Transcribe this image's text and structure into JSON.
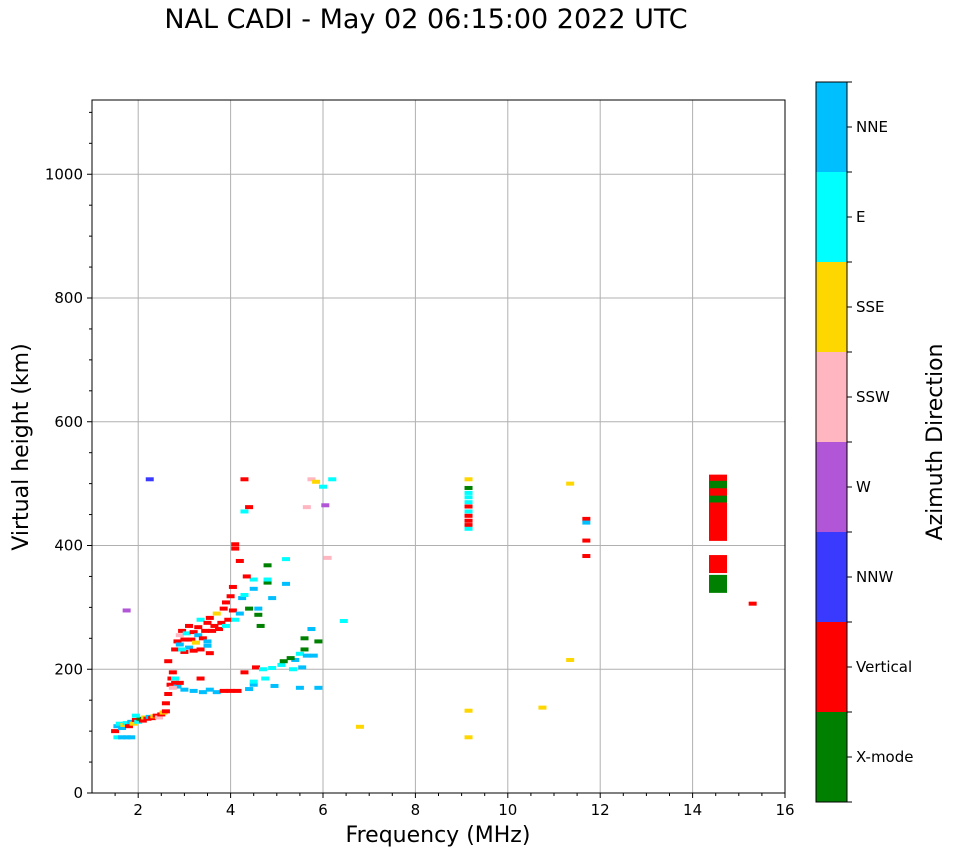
{
  "chart_data": {
    "type": "scatter",
    "title": "NAL CADI - May 02 06:15:00 2022 UTC",
    "xlabel": "Frequency (MHz)",
    "ylabel": "Virtual height (km)",
    "xlim": [
      1,
      16
    ],
    "ylim": [
      0,
      1120
    ],
    "xticks": [
      2,
      4,
      6,
      8,
      10,
      12,
      14,
      16
    ],
    "yticks": [
      0,
      200,
      400,
      600,
      800,
      1000
    ],
    "grid": true,
    "colorbar": {
      "label": "Azimuth Direction",
      "categories": [
        {
          "name": "X-mode",
          "color": "#008000"
        },
        {
          "name": "Vertical",
          "color": "#ff0000"
        },
        {
          "name": "NNW",
          "color": "#3a3aff"
        },
        {
          "name": "W",
          "color": "#b256d8"
        },
        {
          "name": "SSW",
          "color": "#ffb6c1"
        },
        {
          "name": "SSE",
          "color": "#ffd700"
        },
        {
          "name": "E",
          "color": "#00ffff"
        },
        {
          "name": "NNE",
          "color": "#00bfff"
        }
      ]
    },
    "points": [
      {
        "f": 1.55,
        "h": 90,
        "c": "E"
      },
      {
        "f": 1.65,
        "h": 90,
        "c": "NNE"
      },
      {
        "f": 1.75,
        "h": 90,
        "c": "NNE"
      },
      {
        "f": 1.85,
        "h": 90,
        "c": "NNE"
      },
      {
        "f": 1.5,
        "h": 100,
        "c": "Vertical"
      },
      {
        "f": 1.55,
        "h": 108,
        "c": "NNE"
      },
      {
        "f": 1.6,
        "h": 112,
        "c": "E"
      },
      {
        "f": 1.65,
        "h": 105,
        "c": "NNE"
      },
      {
        "f": 1.7,
        "h": 110,
        "c": "SSE"
      },
      {
        "f": 1.75,
        "h": 113,
        "c": "E"
      },
      {
        "f": 1.8,
        "h": 108,
        "c": "Vertical"
      },
      {
        "f": 1.85,
        "h": 115,
        "c": "NNE"
      },
      {
        "f": 1.9,
        "h": 112,
        "c": "SSE"
      },
      {
        "f": 1.95,
        "h": 118,
        "c": "Vertical"
      },
      {
        "f": 2.0,
        "h": 115,
        "c": "E"
      },
      {
        "f": 2.05,
        "h": 120,
        "c": "X-mode"
      },
      {
        "f": 2.1,
        "h": 117,
        "c": "Vertical"
      },
      {
        "f": 2.15,
        "h": 122,
        "c": "SSE"
      },
      {
        "f": 2.2,
        "h": 120,
        "c": "Vertical"
      },
      {
        "f": 2.25,
        "h": 123,
        "c": "NNE"
      },
      {
        "f": 2.3,
        "h": 121,
        "c": "Vertical"
      },
      {
        "f": 2.35,
        "h": 124,
        "c": "SSE"
      },
      {
        "f": 2.4,
        "h": 125,
        "c": "Vertical"
      },
      {
        "f": 2.45,
        "h": 122,
        "c": "SSW"
      },
      {
        "f": 2.5,
        "h": 127,
        "c": "Vertical"
      },
      {
        "f": 2.55,
        "h": 130,
        "c": "SSE"
      },
      {
        "f": 2.6,
        "h": 132,
        "c": "Vertical"
      },
      {
        "f": 1.95,
        "h": 125,
        "c": "E"
      },
      {
        "f": 2.6,
        "h": 145,
        "c": "Vertical"
      },
      {
        "f": 2.65,
        "h": 160,
        "c": "Vertical"
      },
      {
        "f": 2.7,
        "h": 175,
        "c": "Vertical"
      },
      {
        "f": 2.72,
        "h": 185,
        "c": "Vertical"
      },
      {
        "f": 2.75,
        "h": 195,
        "c": "Vertical"
      },
      {
        "f": 2.8,
        "h": 178,
        "c": "Vertical"
      },
      {
        "f": 2.85,
        "h": 172,
        "c": "NNE"
      },
      {
        "f": 2.9,
        "h": 178,
        "c": "Vertical"
      },
      {
        "f": 2.75,
        "h": 170,
        "c": "SSW"
      },
      {
        "f": 2.8,
        "h": 185,
        "c": "E"
      },
      {
        "f": 2.65,
        "h": 213,
        "c": "Vertical"
      },
      {
        "f": 3.0,
        "h": 167,
        "c": "NNE"
      },
      {
        "f": 3.2,
        "h": 165,
        "c": "NNE"
      },
      {
        "f": 3.4,
        "h": 163,
        "c": "NNE"
      },
      {
        "f": 3.55,
        "h": 167,
        "c": "NNE"
      },
      {
        "f": 3.7,
        "h": 163,
        "c": "NNE"
      },
      {
        "f": 3.85,
        "h": 165,
        "c": "Vertical"
      },
      {
        "f": 4.0,
        "h": 165,
        "c": "Vertical"
      },
      {
        "f": 4.15,
        "h": 165,
        "c": "Vertical"
      },
      {
        "f": 4.4,
        "h": 168,
        "c": "NNE"
      },
      {
        "f": 4.5,
        "h": 175,
        "c": "NNE"
      },
      {
        "f": 4.5,
        "h": 180,
        "c": "E"
      },
      {
        "f": 4.75,
        "h": 185,
        "c": "E"
      },
      {
        "f": 4.95,
        "h": 173,
        "c": "NNE"
      },
      {
        "f": 4.3,
        "h": 195,
        "c": "Vertical"
      },
      {
        "f": 3.35,
        "h": 185,
        "c": "Vertical"
      },
      {
        "f": 4.55,
        "h": 203,
        "c": "Vertical"
      },
      {
        "f": 4.7,
        "h": 200,
        "c": "E"
      },
      {
        "f": 4.9,
        "h": 202,
        "c": "E"
      },
      {
        "f": 5.1,
        "h": 207,
        "c": "E"
      },
      {
        "f": 5.35,
        "h": 200,
        "c": "E"
      },
      {
        "f": 5.55,
        "h": 203,
        "c": "NNE"
      },
      {
        "f": 5.4,
        "h": 215,
        "c": "NNE"
      },
      {
        "f": 5.5,
        "h": 225,
        "c": "E"
      },
      {
        "f": 5.6,
        "h": 232,
        "c": "X-mode"
      },
      {
        "f": 5.65,
        "h": 222,
        "c": "NNE"
      },
      {
        "f": 5.8,
        "h": 222,
        "c": "NNE"
      },
      {
        "f": 5.3,
        "h": 218,
        "c": "X-mode"
      },
      {
        "f": 5.15,
        "h": 213,
        "c": "X-mode"
      },
      {
        "f": 5.6,
        "h": 250,
        "c": "X-mode"
      },
      {
        "f": 5.75,
        "h": 265,
        "c": "NNE"
      },
      {
        "f": 5.9,
        "h": 245,
        "c": "X-mode"
      },
      {
        "f": 5.5,
        "h": 170,
        "c": "NNE"
      },
      {
        "f": 5.9,
        "h": 170,
        "c": "NNE"
      },
      {
        "f": 6.45,
        "h": 278,
        "c": "E"
      },
      {
        "f": 2.8,
        "h": 232,
        "c": "Vertical"
      },
      {
        "f": 2.85,
        "h": 245,
        "c": "Vertical"
      },
      {
        "f": 2.9,
        "h": 255,
        "c": "SSW"
      },
      {
        "f": 2.95,
        "h": 262,
        "c": "Vertical"
      },
      {
        "f": 2.9,
        "h": 240,
        "c": "NNE"
      },
      {
        "f": 3.0,
        "h": 248,
        "c": "Vertical"
      },
      {
        "f": 3.05,
        "h": 258,
        "c": "E"
      },
      {
        "f": 3.1,
        "h": 270,
        "c": "Vertical"
      },
      {
        "f": 3.0,
        "h": 228,
        "c": "Vertical"
      },
      {
        "f": 3.1,
        "h": 235,
        "c": "NNE"
      },
      {
        "f": 3.15,
        "h": 248,
        "c": "Vertical"
      },
      {
        "f": 3.2,
        "h": 260,
        "c": "Vertical"
      },
      {
        "f": 3.2,
        "h": 230,
        "c": "Vertical"
      },
      {
        "f": 3.25,
        "h": 243,
        "c": "SSE"
      },
      {
        "f": 3.3,
        "h": 255,
        "c": "NNE"
      },
      {
        "f": 3.3,
        "h": 268,
        "c": "Vertical"
      },
      {
        "f": 3.35,
        "h": 280,
        "c": "E"
      },
      {
        "f": 3.4,
        "h": 250,
        "c": "Vertical"
      },
      {
        "f": 3.45,
        "h": 262,
        "c": "Vertical"
      },
      {
        "f": 3.5,
        "h": 275,
        "c": "Vertical"
      },
      {
        "f": 3.5,
        "h": 245,
        "c": "NNE"
      },
      {
        "f": 3.55,
        "h": 283,
        "c": "Vertical"
      },
      {
        "f": 3.6,
        "h": 262,
        "c": "Vertical"
      },
      {
        "f": 3.65,
        "h": 270,
        "c": "Vertical"
      },
      {
        "f": 3.7,
        "h": 290,
        "c": "SSE"
      },
      {
        "f": 3.75,
        "h": 265,
        "c": "Vertical"
      },
      {
        "f": 3.8,
        "h": 275,
        "c": "Vertical"
      },
      {
        "f": 3.85,
        "h": 298,
        "c": "Vertical"
      },
      {
        "f": 3.9,
        "h": 270,
        "c": "E"
      },
      {
        "f": 3.9,
        "h": 308,
        "c": "Vertical"
      },
      {
        "f": 3.95,
        "h": 280,
        "c": "Vertical"
      },
      {
        "f": 4.0,
        "h": 318,
        "c": "Vertical"
      },
      {
        "f": 4.05,
        "h": 295,
        "c": "Vertical"
      },
      {
        "f": 4.05,
        "h": 333,
        "c": "Vertical"
      },
      {
        "f": 3.35,
        "h": 232,
        "c": "Vertical"
      },
      {
        "f": 3.5,
        "h": 238,
        "c": "NNE"
      },
      {
        "f": 3.55,
        "h": 226,
        "c": "Vertical"
      },
      {
        "f": 2.95,
        "h": 232,
        "c": "E"
      },
      {
        "f": 4.1,
        "h": 280,
        "c": "E"
      },
      {
        "f": 4.2,
        "h": 290,
        "c": "NNE"
      },
      {
        "f": 4.25,
        "h": 315,
        "c": "NNE"
      },
      {
        "f": 4.3,
        "h": 320,
        "c": "E"
      },
      {
        "f": 4.5,
        "h": 330,
        "c": "NNE"
      },
      {
        "f": 4.6,
        "h": 298,
        "c": "NNE"
      },
      {
        "f": 4.9,
        "h": 315,
        "c": "NNE"
      },
      {
        "f": 4.4,
        "h": 298,
        "c": "X-mode"
      },
      {
        "f": 4.6,
        "h": 288,
        "c": "X-mode"
      },
      {
        "f": 4.65,
        "h": 270,
        "c": "X-mode"
      },
      {
        "f": 4.5,
        "h": 345,
        "c": "E"
      },
      {
        "f": 4.35,
        "h": 350,
        "c": "Vertical"
      },
      {
        "f": 4.2,
        "h": 375,
        "c": "Vertical"
      },
      {
        "f": 4.1,
        "h": 395,
        "c": "Vertical"
      },
      {
        "f": 4.1,
        "h": 402,
        "c": "Vertical"
      },
      {
        "f": 4.8,
        "h": 340,
        "c": "X-mode"
      },
      {
        "f": 4.8,
        "h": 368,
        "c": "X-mode"
      },
      {
        "f": 4.8,
        "h": 345,
        "c": "E"
      },
      {
        "f": 5.2,
        "h": 338,
        "c": "NNE"
      },
      {
        "f": 5.2,
        "h": 378,
        "c": "E"
      },
      {
        "f": 6.1,
        "h": 380,
        "c": "SSW"
      },
      {
        "f": 2.25,
        "h": 507,
        "c": "NNW"
      },
      {
        "f": 1.75,
        "h": 295,
        "c": "W"
      },
      {
        "f": 4.3,
        "h": 507,
        "c": "Vertical"
      },
      {
        "f": 4.4,
        "h": 462,
        "c": "Vertical"
      },
      {
        "f": 4.3,
        "h": 455,
        "c": "E"
      },
      {
        "f": 5.75,
        "h": 507,
        "c": "SSW"
      },
      {
        "f": 5.85,
        "h": 503,
        "c": "SSE"
      },
      {
        "f": 6.0,
        "h": 495,
        "c": "E"
      },
      {
        "f": 6.2,
        "h": 507,
        "c": "E"
      },
      {
        "f": 5.65,
        "h": 462,
        "c": "SSW"
      },
      {
        "f": 6.05,
        "h": 465,
        "c": "W"
      },
      {
        "f": 6.8,
        "h": 107,
        "c": "SSE"
      },
      {
        "f": 9.15,
        "h": 507,
        "c": "SSE"
      },
      {
        "f": 9.15,
        "h": 493,
        "c": "X-mode"
      },
      {
        "f": 9.15,
        "h": 485,
        "c": "E"
      },
      {
        "f": 9.15,
        "h": 478,
        "c": "E"
      },
      {
        "f": 9.15,
        "h": 470,
        "c": "E"
      },
      {
        "f": 9.15,
        "h": 463,
        "c": "Vertical"
      },
      {
        "f": 9.15,
        "h": 455,
        "c": "E"
      },
      {
        "f": 9.15,
        "h": 448,
        "c": "Vertical"
      },
      {
        "f": 9.15,
        "h": 440,
        "c": "Vertical"
      },
      {
        "f": 9.15,
        "h": 433,
        "c": "Vertical"
      },
      {
        "f": 9.15,
        "h": 427,
        "c": "E"
      },
      {
        "f": 9.15,
        "h": 133,
        "c": "SSE"
      },
      {
        "f": 9.15,
        "h": 90,
        "c": "SSE"
      },
      {
        "f": 10.75,
        "h": 138,
        "c": "SSE"
      },
      {
        "f": 11.35,
        "h": 500,
        "c": "SSE"
      },
      {
        "f": 11.35,
        "h": 215,
        "c": "SSE"
      },
      {
        "f": 11.7,
        "h": 443,
        "c": "Vertical"
      },
      {
        "f": 11.7,
        "h": 437,
        "c": "NNE"
      },
      {
        "f": 11.7,
        "h": 408,
        "c": "Vertical"
      },
      {
        "f": 11.7,
        "h": 383,
        "c": "Vertical"
      },
      {
        "f": 14.55,
        "h": 500,
        "c": "Vertical"
      },
      {
        "f": 14.55,
        "h": 490,
        "c": "X-mode"
      },
      {
        "f": 14.55,
        "h": 478,
        "c": "Vertical"
      },
      {
        "f": 14.55,
        "h": 466,
        "c": "X-mode"
      },
      {
        "f": 14.55,
        "h": 455,
        "c": "Vertical"
      },
      {
        "f": 14.55,
        "h": 440,
        "c": "Vertical"
      },
      {
        "f": 14.55,
        "h": 422,
        "c": "Vertical"
      },
      {
        "f": 14.55,
        "h": 370,
        "c": "Vertical"
      },
      {
        "f": 14.55,
        "h": 338,
        "c": "X-mode"
      },
      {
        "f": 15.3,
        "h": 306,
        "c": "Vertical"
      }
    ]
  }
}
